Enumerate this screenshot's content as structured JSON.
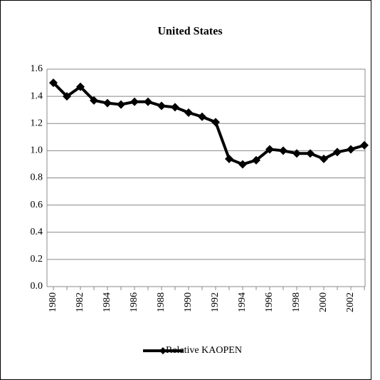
{
  "chart_data": {
    "type": "line",
    "title": "United States",
    "categories": [
      "1980",
      null,
      "1982",
      null,
      "1984",
      null,
      "1986",
      null,
      "1988",
      null,
      "1990",
      null,
      "1992",
      null,
      "1994",
      null,
      "1996",
      null,
      "1998",
      null,
      "2000",
      null,
      "2002",
      null
    ],
    "series": [
      {
        "name": "Relative KAOPEN",
        "color": "#000000",
        "values": [
          1.5,
          1.4,
          1.47,
          1.37,
          1.35,
          1.34,
          1.36,
          1.36,
          1.33,
          1.32,
          1.28,
          1.25,
          1.21,
          0.94,
          0.9,
          0.93,
          1.01,
          1.0,
          0.98,
          0.98,
          0.94,
          0.99,
          1.01,
          1.04
        ]
      }
    ],
    "ylim": [
      0,
      1.6
    ],
    "yticks": [
      {
        "value": 0,
        "label": "0.0"
      },
      0.2,
      0.4,
      0.6,
      0.8,
      {
        "value": 1,
        "label": "1.0"
      },
      1.2,
      1.4,
      1.6
    ],
    "grid": true,
    "legend": "bottom"
  }
}
